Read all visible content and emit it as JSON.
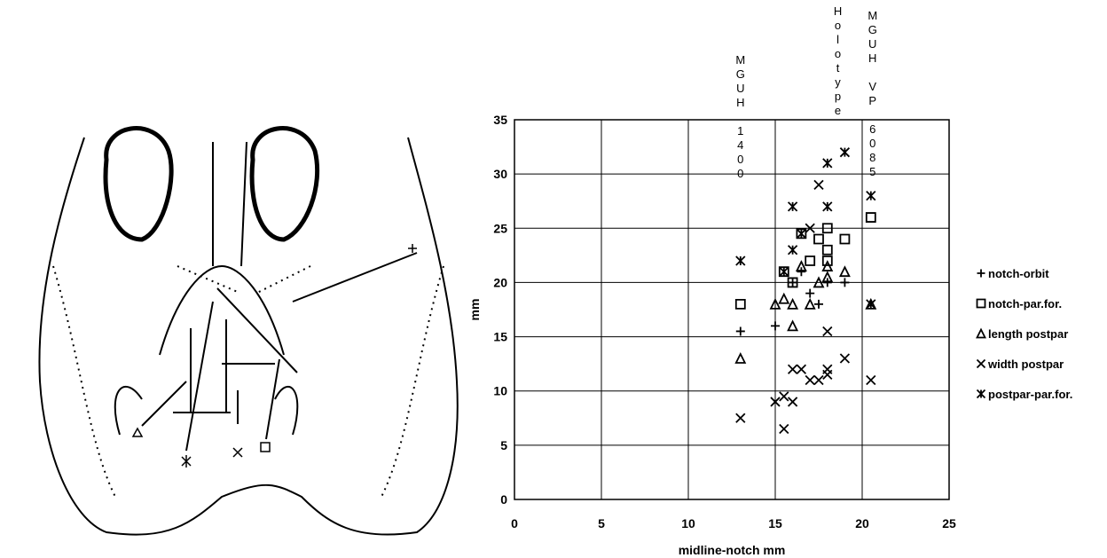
{
  "chart_data": {
    "type": "scatter",
    "xlabel": "midline-notch mm",
    "ylabel": "mm",
    "xlim": [
      0,
      25
    ],
    "ylim": [
      0,
      35
    ],
    "xticks": [
      0,
      5,
      10,
      15,
      20,
      25
    ],
    "yticks": [
      0,
      5,
      10,
      15,
      20,
      25,
      30,
      35
    ],
    "grid": true,
    "annotations": [
      {
        "text": "MGUH 1400",
        "x": 13
      },
      {
        "text": "Holotype",
        "x": 18.6
      },
      {
        "text": "MGUH VP 6085",
        "x": 20.6
      }
    ],
    "series": [
      {
        "name": "notch-orbit",
        "marker": "plus",
        "color": "#000000",
        "x": [
          13,
          15,
          16,
          16.5,
          17,
          17.5,
          18,
          19
        ],
        "y": [
          15.5,
          16,
          20,
          21,
          19,
          18,
          20,
          20
        ]
      },
      {
        "name": "notch-par.for.",
        "marker": "square",
        "color": "#000000",
        "x": [
          13,
          15.5,
          16,
          16.5,
          17,
          17.5,
          18,
          18,
          18,
          19,
          20.5
        ],
        "y": [
          18,
          21,
          20,
          24.5,
          22,
          24,
          25,
          23,
          22,
          24,
          26
        ]
      },
      {
        "name": "length postpar",
        "marker": "triangle",
        "color": "#000000",
        "x": [
          13,
          15,
          15.5,
          16,
          16,
          16.5,
          17,
          17.5,
          18,
          18,
          19,
          20.5
        ],
        "y": [
          13,
          18,
          18.5,
          18,
          16,
          21.5,
          18,
          20,
          21.5,
          20.5,
          21,
          18
        ]
      },
      {
        "name": "width postpar",
        "marker": "cross",
        "color": "#000000",
        "x": [
          13,
          15,
          15.5,
          15.5,
          16,
          16,
          16.5,
          17,
          17.5,
          18,
          18,
          18,
          19,
          20.5,
          17,
          17.5
        ],
        "y": [
          7.5,
          9,
          9.5,
          6.5,
          9,
          12,
          12,
          11,
          11,
          11.5,
          12,
          15.5,
          13,
          11,
          25,
          29
        ]
      },
      {
        "name": "postpar-par.for.",
        "marker": "asterisk",
        "color": "#000000",
        "x": [
          13,
          15.5,
          16,
          16,
          16.5,
          18,
          18,
          19,
          20.5,
          20.5
        ],
        "y": [
          22,
          21,
          27,
          23,
          24.5,
          31,
          27,
          32,
          28,
          18
        ]
      }
    ]
  }
}
